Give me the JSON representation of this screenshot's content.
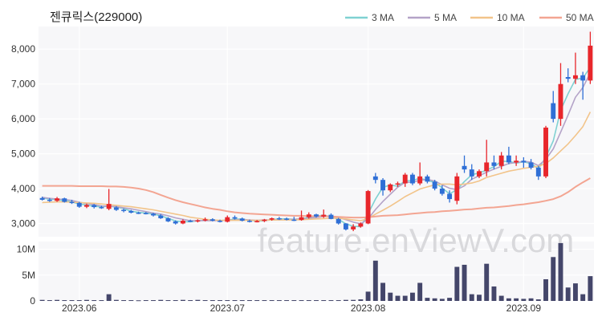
{
  "title": "젠큐릭스(229000)",
  "watermark": "feature.enViewV.com",
  "colors": {
    "panel_bg": "#f7f7f9",
    "up": "#e8262b",
    "down": "#2f6fd6",
    "volume": "#44466a",
    "ma3": "#7fd1d2",
    "ma5": "#b4a3c8",
    "ma10": "#f2c48a",
    "ma50": "#f3a592",
    "watermark": "#d9d9dc"
  },
  "legend": [
    {
      "label": "3 MA",
      "color": "#7fd1d2"
    },
    {
      "label": "5 MA",
      "color": "#b4a3c8"
    },
    {
      "label": "10 MA",
      "color": "#f2c48a"
    },
    {
      "label": "50 MA",
      "color": "#f3a592"
    }
  ],
  "chart_data": {
    "type": "candlestick",
    "title": "젠큐릭스(229000)",
    "x_ticks": [
      {
        "label": "2023.06",
        "index": 5
      },
      {
        "label": "2023.07",
        "index": 25
      },
      {
        "label": "2023.08",
        "index": 44
      },
      {
        "label": "2023.09",
        "index": 65
      }
    ],
    "price_axis": {
      "ticks": [
        3000,
        4000,
        5000,
        6000,
        7000,
        8000
      ],
      "tick_labels": [
        "3,000",
        "4,000",
        "5,000",
        "6,000",
        "7,000",
        "8,000"
      ],
      "range": [
        2620,
        8650
      ]
    },
    "volume_axis": {
      "ticks": [
        0,
        5000000,
        10000000
      ],
      "tick_labels": [
        "0",
        "5M",
        "10M"
      ],
      "range": [
        0,
        11500000
      ]
    },
    "candles": [
      [
        3730,
        3770,
        3660,
        3680
      ],
      [
        3680,
        3730,
        3620,
        3650
      ],
      [
        3650,
        3760,
        3620,
        3720
      ],
      [
        3720,
        3740,
        3600,
        3620
      ],
      [
        3620,
        3680,
        3560,
        3590
      ],
      [
        3590,
        3620,
        3450,
        3480
      ],
      [
        3480,
        3570,
        3440,
        3530
      ],
      [
        3530,
        3560,
        3430,
        3470
      ],
      [
        3470,
        3510,
        3420,
        3460
      ],
      [
        3420,
        3990,
        3380,
        3560
      ],
      [
        3460,
        3500,
        3360,
        3390
      ],
      [
        3390,
        3430,
        3320,
        3360
      ],
      [
        3360,
        3390,
        3290,
        3310
      ],
      [
        3310,
        3340,
        3270,
        3300
      ],
      [
        3300,
        3330,
        3260,
        3280
      ],
      [
        3280,
        3310,
        3200,
        3230
      ],
      [
        3230,
        3270,
        3130,
        3150
      ],
      [
        3150,
        3180,
        3040,
        3060
      ],
      [
        3060,
        3090,
        2970,
        3000
      ],
      [
        3000,
        3120,
        2980,
        3080
      ],
      [
        3080,
        3110,
        3040,
        3060
      ],
      [
        3060,
        3120,
        3030,
        3090
      ],
      [
        3090,
        3170,
        3060,
        3120
      ],
      [
        3120,
        3150,
        3060,
        3080
      ],
      [
        3080,
        3110,
        3030,
        3050
      ],
      [
        3050,
        3230,
        3030,
        3180
      ],
      [
        3180,
        3230,
        3110,
        3140
      ],
      [
        3140,
        3170,
        3060,
        3080
      ],
      [
        3080,
        3110,
        3030,
        3060
      ],
      [
        3060,
        3100,
        3030,
        3070
      ],
      [
        3070,
        3130,
        3040,
        3110
      ],
      [
        3110,
        3170,
        3080,
        3150
      ],
      [
        3150,
        3190,
        3100,
        3140
      ],
      [
        3140,
        3170,
        3090,
        3110
      ],
      [
        3110,
        3190,
        3070,
        3100
      ],
      [
        3100,
        3370,
        3080,
        3180
      ],
      [
        3180,
        3320,
        3140,
        3260
      ],
      [
        3260,
        3280,
        3170,
        3200
      ],
      [
        3200,
        3400,
        3160,
        3250
      ],
      [
        3250,
        3290,
        3120,
        3130
      ],
      [
        3130,
        3160,
        2970,
        3000
      ],
      [
        3000,
        3010,
        2800,
        2830
      ],
      [
        2830,
        2980,
        2780,
        2910
      ],
      [
        2910,
        3030,
        2880,
        3000
      ],
      [
        3000,
        3960,
        2980,
        3930
      ],
      [
        4350,
        4450,
        4150,
        4250
      ],
      [
        4250,
        4300,
        3800,
        3950
      ],
      [
        3950,
        4150,
        3900,
        4120
      ],
      [
        4120,
        4200,
        4050,
        4150
      ],
      [
        4150,
        4450,
        4050,
        4400
      ],
      [
        4400,
        4450,
        4100,
        4150
      ],
      [
        4150,
        4750,
        4100,
        4350
      ],
      [
        4350,
        4400,
        4150,
        4200
      ],
      [
        4200,
        4250,
        3950,
        4000
      ],
      [
        4000,
        4100,
        3800,
        3850
      ],
      [
        3850,
        3950,
        3600,
        3700
      ],
      [
        3650,
        4450,
        3550,
        4350
      ],
      [
        4650,
        4950,
        4450,
        4550
      ],
      [
        4550,
        4700,
        4250,
        4350
      ],
      [
        4350,
        4550,
        4300,
        4500
      ],
      [
        4500,
        5400,
        4350,
        4750
      ],
      [
        4750,
        4950,
        4550,
        4650
      ],
      [
        4650,
        5050,
        4550,
        4950
      ],
      [
        4950,
        5200,
        4700,
        4750
      ],
      [
        4750,
        4950,
        4650,
        4800
      ],
      [
        4800,
        4900,
        4600,
        4750
      ],
      [
        4750,
        4850,
        4550,
        4600
      ],
      [
        4600,
        4650,
        4250,
        4350
      ],
      [
        4350,
        5800,
        4300,
        5750
      ],
      [
        6450,
        6800,
        5900,
        6000
      ],
      [
        6000,
        7600,
        5800,
        7000
      ],
      [
        7200,
        7450,
        7050,
        7150
      ],
      [
        7150,
        7900,
        7000,
        7250
      ],
      [
        7250,
        7350,
        6550,
        7100
      ],
      [
        7100,
        8500,
        7000,
        8100
      ]
    ],
    "volume": [
      200000,
      150000,
      200000,
      150000,
      150000,
      150000,
      200000,
      150000,
      150000,
      1300000,
      200000,
      150000,
      150000,
      120000,
      150000,
      150000,
      200000,
      150000,
      150000,
      200000,
      150000,
      200000,
      150000,
      150000,
      150000,
      150000,
      150000,
      150000,
      150000,
      150000,
      150000,
      150000,
      150000,
      150000,
      150000,
      150000,
      150000,
      150000,
      150000,
      150000,
      150000,
      200000,
      200000,
      300000,
      1800000,
      7800000,
      3500000,
      1600000,
      1000000,
      1000000,
      1600000,
      3500000,
      600000,
      500000,
      400000,
      600000,
      6600000,
      7000000,
      1300000,
      1200000,
      7200000,
      2800000,
      1000000,
      500000,
      500000,
      400000,
      500000,
      300000,
      4200000,
      8500000,
      11200000,
      2600000,
      3400000,
      1300000,
      4800000
    ],
    "moving_averages": {
      "3 MA": [
        3730,
        3700,
        3680,
        3660,
        3620,
        3560,
        3530,
        3490,
        3480,
        3500,
        3470,
        3430,
        3350,
        3320,
        3300,
        3270,
        3220,
        3150,
        3070,
        3050,
        3050,
        3080,
        3090,
        3100,
        3080,
        3100,
        3120,
        3130,
        3090,
        3070,
        3080,
        3110,
        3130,
        3130,
        3120,
        3130,
        3180,
        3210,
        3240,
        3190,
        3120,
        2990,
        2920,
        2910,
        3280,
        3700,
        4040,
        4100,
        4070,
        4220,
        4230,
        4300,
        4230,
        4180,
        4020,
        3850,
        3970,
        4200,
        4400,
        4450,
        4530,
        4630,
        4780,
        4780,
        4730,
        4770,
        4720,
        4570,
        4900,
        5370,
        6250,
        6720,
        7130,
        7170,
        7480
      ],
      "5 MA": [
        3750,
        3720,
        3700,
        3690,
        3660,
        3610,
        3570,
        3540,
        3500,
        3500,
        3480,
        3450,
        3420,
        3380,
        3340,
        3300,
        3270,
        3220,
        3160,
        3120,
        3080,
        3080,
        3080,
        3080,
        3080,
        3090,
        3100,
        3110,
        3100,
        3090,
        3100,
        3100,
        3110,
        3110,
        3120,
        3130,
        3150,
        3170,
        3200,
        3200,
        3170,
        3110,
        3040,
        2990,
        3130,
        3400,
        3630,
        3840,
        4040,
        4180,
        4180,
        4240,
        4260,
        4220,
        4110,
        4010,
        3970,
        4080,
        4270,
        4370,
        4470,
        4560,
        4640,
        4720,
        4750,
        4780,
        4760,
        4660,
        4840,
        5140,
        5620,
        6110,
        6620,
        6900,
        7320
      ],
      "10 MA": [
        3600,
        3610,
        3620,
        3620,
        3610,
        3600,
        3590,
        3580,
        3560,
        3540,
        3520,
        3500,
        3480,
        3450,
        3420,
        3390,
        3350,
        3310,
        3270,
        3230,
        3180,
        3150,
        3120,
        3100,
        3090,
        3090,
        3090,
        3090,
        3090,
        3090,
        3090,
        3100,
        3100,
        3100,
        3100,
        3110,
        3120,
        3130,
        3140,
        3150,
        3150,
        3130,
        3100,
        3080,
        3140,
        3270,
        3380,
        3500,
        3630,
        3770,
        3880,
        3990,
        4050,
        4110,
        4130,
        4130,
        4110,
        4130,
        4160,
        4220,
        4320,
        4380,
        4440,
        4500,
        4540,
        4580,
        4610,
        4640,
        4720,
        4880,
        5080,
        5280,
        5520,
        5780,
        6200
      ],
      "50 MA": [
        4080,
        4080,
        4080,
        4080,
        4080,
        4070,
        4070,
        4070,
        4070,
        4060,
        4060,
        4050,
        4030,
        4000,
        3960,
        3900,
        3820,
        3740,
        3670,
        3610,
        3560,
        3510,
        3460,
        3420,
        3390,
        3350,
        3320,
        3300,
        3280,
        3270,
        3260,
        3250,
        3240,
        3230,
        3220,
        3220,
        3210,
        3210,
        3210,
        3200,
        3190,
        3180,
        3170,
        3170,
        3180,
        3200,
        3220,
        3230,
        3240,
        3260,
        3280,
        3300,
        3320,
        3330,
        3350,
        3360,
        3380,
        3400,
        3410,
        3430,
        3450,
        3460,
        3480,
        3500,
        3530,
        3550,
        3580,
        3610,
        3650,
        3700,
        3780,
        3900,
        4050,
        4180,
        4300
      ]
    }
  }
}
